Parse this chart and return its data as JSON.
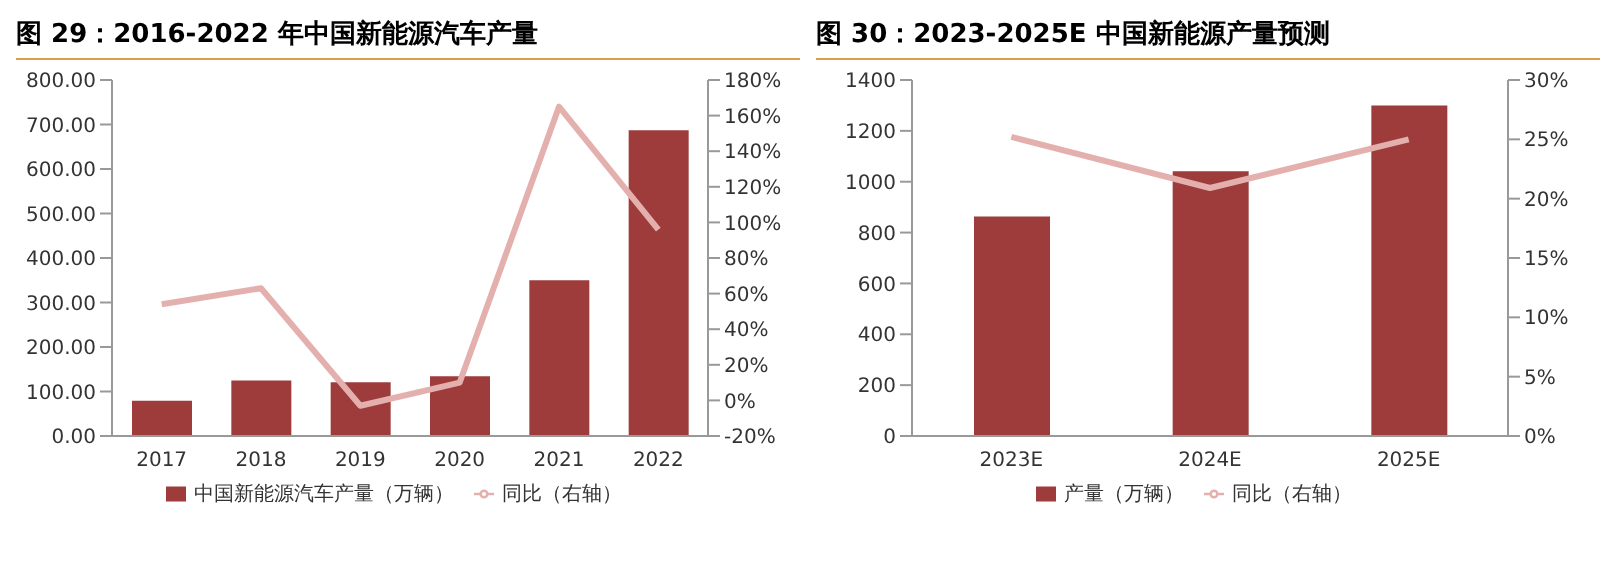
{
  "chart_data": [
    {
      "type": "bar",
      "title": "图 29：2016-2022 年中国新能源汽车产量",
      "categories": [
        "2017",
        "2018",
        "2019",
        "2020",
        "2021",
        "2022"
      ],
      "series": [
        {
          "name": "中国新能源汽车产量（万辆）",
          "color": "#9e3b3b",
          "values": [
            79,
            125,
            121,
            134,
            350,
            687
          ]
        },
        {
          "name": "同比（右轴）",
          "type": "line",
          "axis": "y2",
          "color": "#e4b0ae",
          "values": [
            54,
            63,
            -3,
            10,
            165,
            96
          ]
        }
      ],
      "ylim": [
        0,
        800
      ],
      "yticks": [
        {
          "value": 0,
          "label": "0.00"
        },
        {
          "value": 100,
          "label": "100.00"
        },
        {
          "value": 200,
          "label": "200.00"
        },
        {
          "value": 300,
          "label": "300.00"
        },
        {
          "value": 400,
          "label": "400.00"
        },
        {
          "value": 500,
          "label": "500.00"
        },
        {
          "value": 600,
          "label": "600.00"
        },
        {
          "value": 700,
          "label": "700.00"
        },
        {
          "value": 800,
          "label": "800.00"
        }
      ],
      "y2lim": [
        -20,
        180
      ],
      "y2ticks": [
        {
          "value": -20,
          "label": "-20%"
        },
        {
          "value": 0,
          "label": "0%"
        },
        {
          "value": 20,
          "label": "20%"
        },
        {
          "value": 40,
          "label": "40%"
        },
        {
          "value": 60,
          "label": "60%"
        },
        {
          "value": 80,
          "label": "80%"
        },
        {
          "value": 100,
          "label": "100%"
        },
        {
          "value": 120,
          "label": "120%"
        },
        {
          "value": 140,
          "label": "140%"
        },
        {
          "value": 160,
          "label": "160%"
        },
        {
          "value": 180,
          "label": "180%"
        }
      ],
      "legend": "bottom",
      "grid": false,
      "marker": "none"
    },
    {
      "type": "bar",
      "title": "图 30：2023-2025E 中国新能源产量预测",
      "categories": [
        "2023E",
        "2024E",
        "2025E"
      ],
      "series": [
        {
          "name": "产量（万辆）",
          "color": "#9e3b3b",
          "values": [
            863,
            1041,
            1300
          ]
        },
        {
          "name": "同比（右轴）",
          "type": "line",
          "axis": "y2",
          "color": "#e4b0ae",
          "values": [
            25.2,
            20.9,
            25
          ]
        }
      ],
      "ylim": [
        0,
        1400
      ],
      "yticks": [
        0,
        200,
        400,
        600,
        800,
        1000,
        1200,
        1400
      ],
      "y2lim": [
        0,
        30
      ],
      "y2ticks": [
        {
          "value": 0,
          "label": "0%"
        },
        {
          "value": 5,
          "label": "5%"
        },
        {
          "value": 10,
          "label": "10%"
        },
        {
          "value": 15,
          "label": "15%"
        },
        {
          "value": 20,
          "label": "20%"
        },
        {
          "value": 25,
          "label": "25%"
        },
        {
          "value": 30,
          "label": "30%"
        }
      ],
      "legend": "bottom",
      "grid": false,
      "marker": "none"
    }
  ]
}
